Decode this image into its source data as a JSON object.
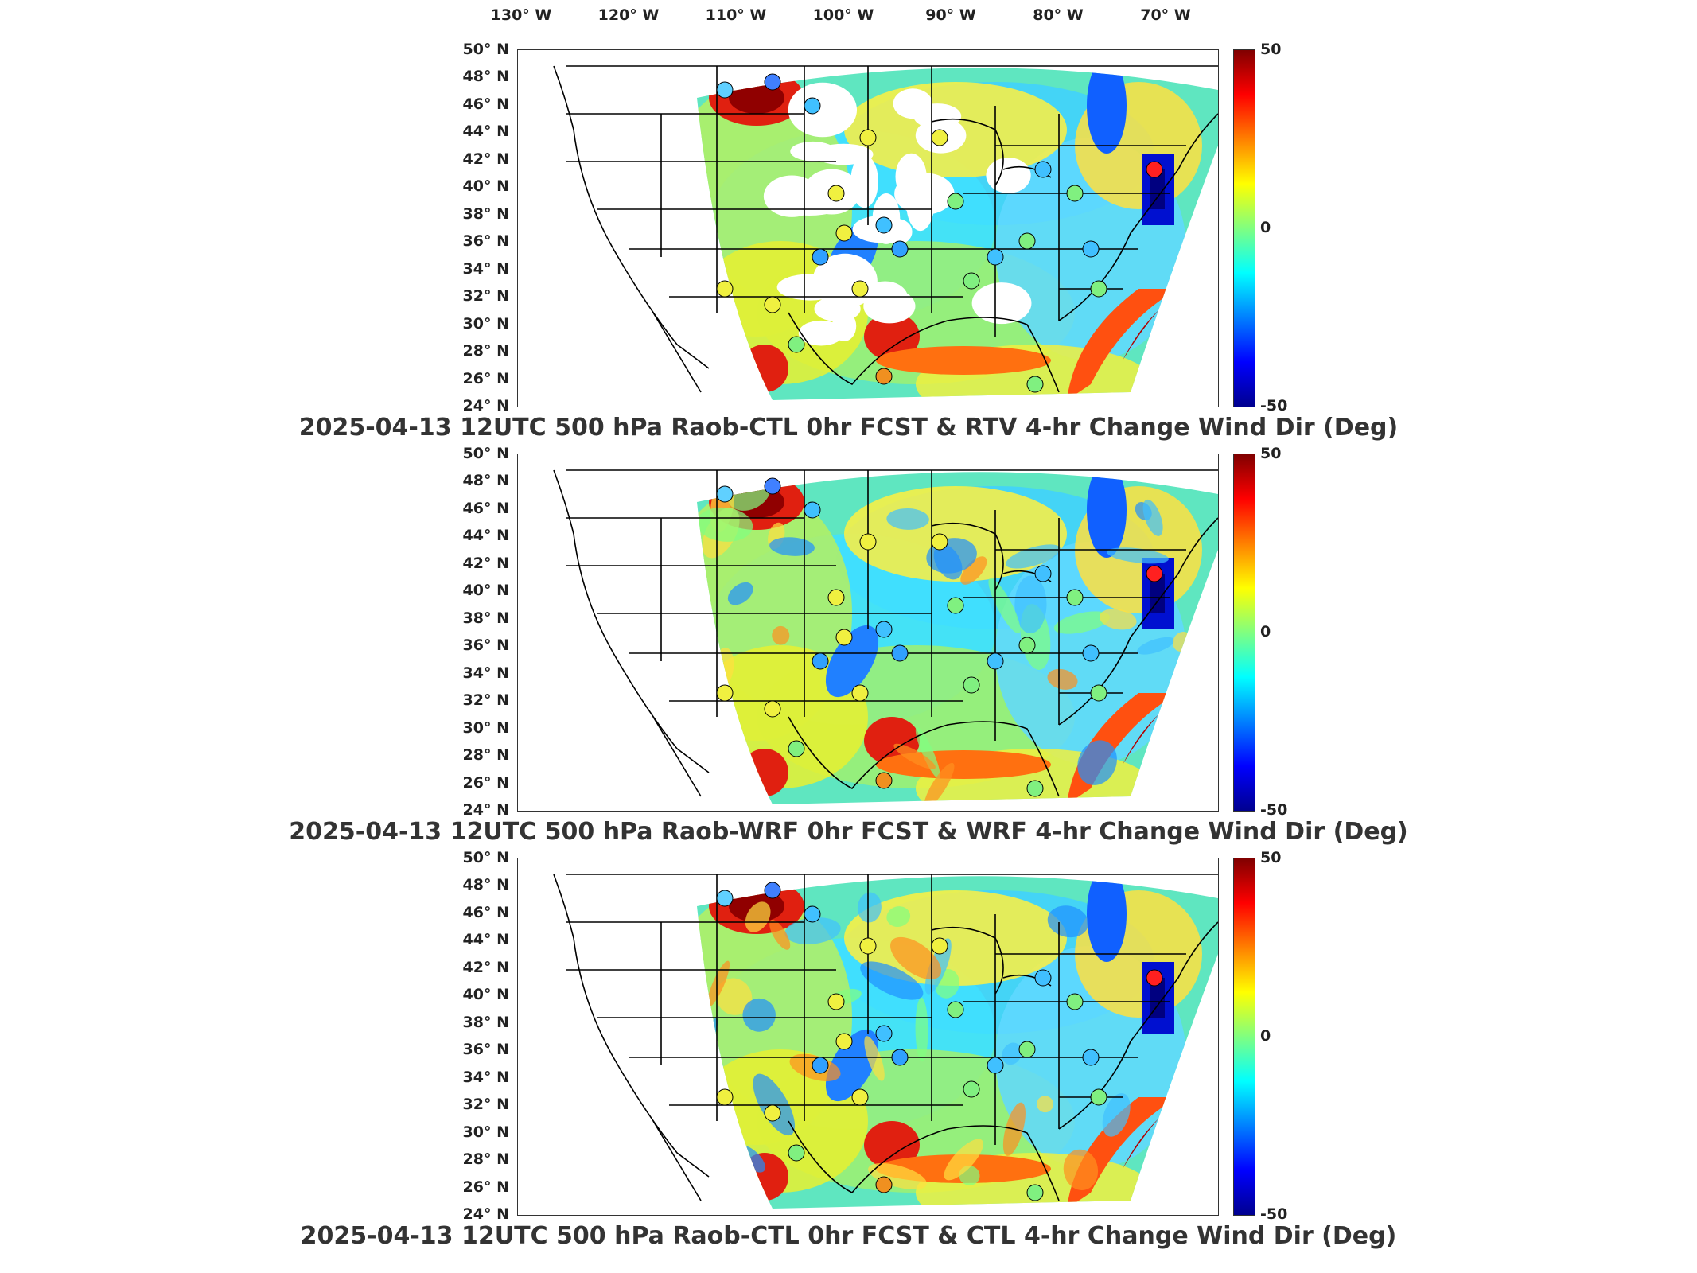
{
  "longitude_labels": [
    "130° W",
    "120° W",
    "110° W",
    "100° W",
    "90° W",
    "80° W",
    "70° W"
  ],
  "latitude_labels": [
    "50° N",
    "48° N",
    "46° N",
    "44° N",
    "42° N",
    "40° N",
    "38° N",
    "36° N",
    "34° N",
    "32° N",
    "30° N",
    "28° N",
    "26° N",
    "24° N"
  ],
  "colorbar": {
    "max": "50",
    "mid": "0",
    "min": "-50"
  },
  "panels": [
    {
      "title": "2025-04-13 12UTC 500 hPa Raob-CTL 0hr FCST & RTV 4-hr Change Wind Dir (Deg)"
    },
    {
      "title": "2025-04-13 12UTC 500 hPa Raob-WRF 0hr FCST & WRF 4-hr Change Wind Dir (Deg)"
    },
    {
      "title": "2025-04-13 12UTC 500 hPa Raob-CTL 0hr FCST & CTL 4-hr Change Wind Dir (Deg)"
    }
  ],
  "colors": {
    "colormap": [
      "#00008f",
      "#0000ff",
      "#0080ff",
      "#00ffff",
      "#80ff80",
      "#ffff00",
      "#ff8000",
      "#ff0000",
      "#800000"
    ]
  }
}
